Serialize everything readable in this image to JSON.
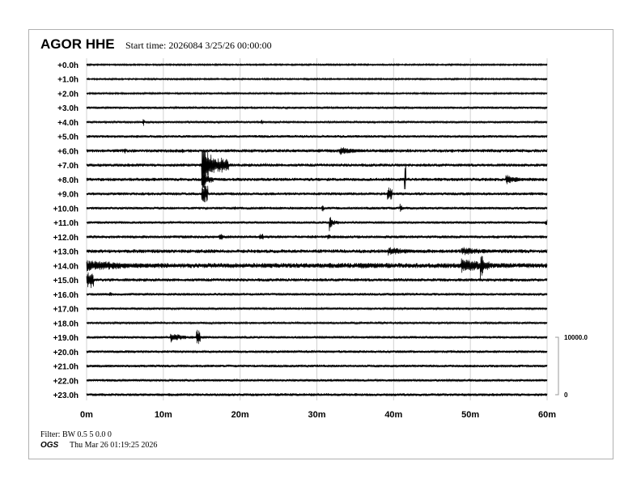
{
  "header": {
    "station": "AGOR HHE",
    "start_time": "Start time: 2026084  3/25/26 00:00:00"
  },
  "footer": {
    "filter": "Filter: BW 0.5 5 0.0 0",
    "agency": "OGS",
    "timestamp": "Thu Mar 26 01:19:25 2026"
  },
  "colors": {
    "trace": "#000000",
    "grid": "#d0d0d0",
    "frame": "#b0b0b0"
  },
  "chart_data": {
    "type": "line",
    "title": "AGOR HHE",
    "row_labels": [
      "+0.0h",
      "+1.0h",
      "+2.0h",
      "+3.0h",
      "+4.0h",
      "+5.0h",
      "+6.0h",
      "+7.0h",
      "+8.0h",
      "+9.0h",
      "+10.0h",
      "+11.0h",
      "+12.0h",
      "+13.0h",
      "+14.0h",
      "+15.0h",
      "+16.0h",
      "+17.0h",
      "+18.0h",
      "+19.0h",
      "+20.0h",
      "+21.0h",
      "+22.0h",
      "+23.0h"
    ],
    "x_ticks": [
      "0m",
      "10m",
      "20m",
      "30m",
      "40m",
      "50m",
      "60m"
    ],
    "xlim": [
      0,
      60
    ],
    "grid": true,
    "scale": {
      "top_label": "10000.0",
      "bottom_label": "0",
      "range": [
        0,
        10000
      ]
    },
    "noise_counts": [
      100,
      100,
      100,
      130,
      130,
      160,
      200,
      190,
      200,
      180,
      160,
      150,
      180,
      220,
      300,
      190,
      160,
      130,
      120,
      150,
      160,
      160,
      150,
      170
    ],
    "events": [
      {
        "row": 4,
        "t": [
          7.3,
          7.5
        ],
        "amp": 700
      },
      {
        "row": 4,
        "t": [
          22.7,
          22.9
        ],
        "amp": 500
      },
      {
        "row": 6,
        "t": [
          4.9,
          5.1
        ],
        "amp": 700
      },
      {
        "row": 6,
        "t": [
          12.4,
          12.6
        ],
        "amp": 500
      },
      {
        "row": 6,
        "t": [
          33,
          39.9
        ],
        "amp": 800
      },
      {
        "row": 7,
        "t": [
          15,
          18.5
        ],
        "amp": 5200
      },
      {
        "row": 7,
        "t": [
          23.2,
          23.4
        ],
        "amp": 400
      },
      {
        "row": 8,
        "t": [
          15,
          16.5
        ],
        "amp": 2500
      },
      {
        "row": 8,
        "t": [
          41.4,
          41.6
        ],
        "amp": 3000
      },
      {
        "row": 8,
        "t": [
          54.6,
          60
        ],
        "amp": 900
      },
      {
        "row": 9,
        "t": [
          15,
          15.8
        ],
        "amp": 1500
      },
      {
        "row": 9,
        "t": [
          39.2,
          39.8
        ],
        "amp": 1200
      },
      {
        "row": 10,
        "t": [
          19.3,
          19.4
        ],
        "amp": 700
      },
      {
        "row": 10,
        "t": [
          30.6,
          30.9
        ],
        "amp": 600
      },
      {
        "row": 10,
        "t": [
          40.8,
          42
        ],
        "amp": 900
      },
      {
        "row": 11,
        "t": [
          31.6,
          32.8
        ],
        "amp": 1700
      },
      {
        "row": 11,
        "t": [
          59.7,
          60
        ],
        "amp": 500
      },
      {
        "row": 12,
        "t": [
          17.3,
          17.8
        ],
        "amp": 600
      },
      {
        "row": 12,
        "t": [
          22.5,
          23
        ],
        "amp": 600
      },
      {
        "row": 12,
        "t": [
          31.4,
          31.7
        ],
        "amp": 500
      },
      {
        "row": 13,
        "t": [
          39.3,
          47.2
        ],
        "amp": 900
      },
      {
        "row": 13,
        "t": [
          48.8,
          60
        ],
        "amp": 800
      },
      {
        "row": 14,
        "t": [
          0,
          23.5
        ],
        "amp": 1000
      },
      {
        "row": 14,
        "t": [
          23.5,
          26
        ],
        "amp": 500
      },
      {
        "row": 14,
        "t": [
          35.6,
          47.8
        ],
        "amp": 600
      },
      {
        "row": 14,
        "t": [
          48.8,
          60
        ],
        "amp": 1300
      },
      {
        "row": 14,
        "t": [
          51.3,
          52.5
        ],
        "amp": 3200
      },
      {
        "row": 15,
        "t": [
          0,
          0.9
        ],
        "amp": 1500
      },
      {
        "row": 16,
        "t": [
          3,
          3.3
        ],
        "amp": 400
      },
      {
        "row": 19,
        "t": [
          10.9,
          15.8
        ],
        "amp": 1000
      },
      {
        "row": 19,
        "t": [
          14.3,
          14.8
        ],
        "amp": 1500
      }
    ]
  }
}
